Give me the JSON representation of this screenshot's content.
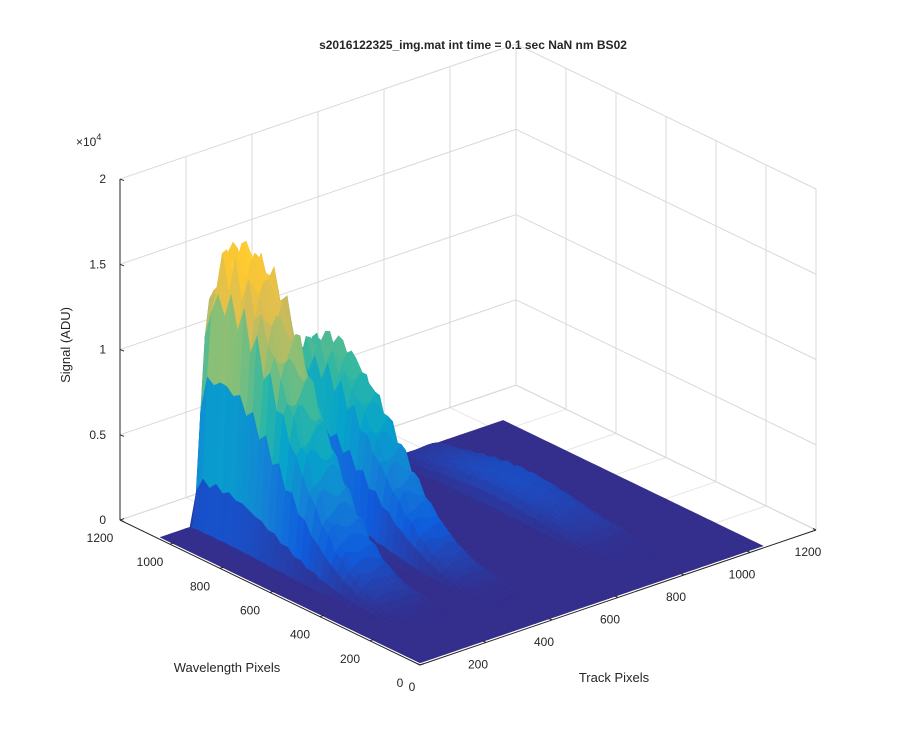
{
  "chart_data": {
    "type": "surface",
    "title": "s2016122325_img.mat int time = 0.1 sec  NaN nm BS02",
    "xlabel": "Track Pixels",
    "ylabel": "Wavelength Pixels",
    "zlabel": "Signal (ADU)",
    "z_exponent_label": "×10",
    "z_exponent_power": "4",
    "xlim": [
      0,
      1200
    ],
    "ylim": [
      0,
      1200
    ],
    "zlim": [
      0,
      20000
    ],
    "x_ticks": [
      "0",
      "200",
      "400",
      "600",
      "800",
      "1000",
      "1200"
    ],
    "y_ticks": [
      "0",
      "200",
      "400",
      "600",
      "800",
      "1000",
      "1200"
    ],
    "z_ticks": [
      "0",
      "0.5",
      "1",
      "1.5",
      "2"
    ],
    "grid": true,
    "colormap": "parula",
    "colors": [
      "#352a87",
      "#0f5cdd",
      "#1481d6",
      "#06a4ca",
      "#2eb7a4",
      "#87bf77",
      "#d1bb59",
      "#fec832",
      "#f9fb0e"
    ],
    "surface_extent": {
      "track_pixels": [
        0,
        1040
      ],
      "wavelength_pixels": [
        0,
        1040
      ]
    },
    "stripes": [
      {
        "track_center": 170,
        "track_width": 150,
        "peak_signal": 17000,
        "peak_wavelength": 930
      },
      {
        "track_center": 390,
        "track_width": 120,
        "peak_signal": 10500,
        "peak_wavelength": 880
      },
      {
        "track_center": 770,
        "track_width": 150,
        "peak_signal": 1500,
        "peak_wavelength": 650
      }
    ]
  }
}
